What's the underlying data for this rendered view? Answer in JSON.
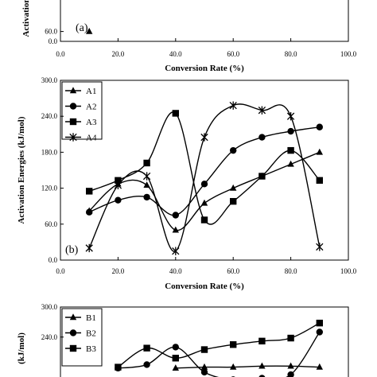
{
  "chart_data": [
    {
      "type": "line",
      "panel_label": "(a)",
      "xlabel": "Conversion Rate (%)",
      "ylabel": "Activation",
      "xlim": [
        0,
        100
      ],
      "ylim": [
        0,
        300
      ],
      "x_ticks": [
        "0.0",
        "20.0",
        "40.0",
        "60.0",
        "80.0",
        "100.0"
      ],
      "y_ticks_visible": [
        "0.0",
        "60.0"
      ],
      "series": [
        {
          "x": [
            10
          ],
          "values": [
            60
          ],
          "marker": "triangle"
        }
      ]
    },
    {
      "type": "line",
      "panel_label": "(b)",
      "xlabel": "Conversion Rate (%)",
      "ylabel": "Activation Energies (kJ/mol)",
      "xlim": [
        0,
        100
      ],
      "ylim": [
        0,
        300
      ],
      "x_ticks": [
        "0.0",
        "20.0",
        "40.0",
        "60.0",
        "80.0",
        "100.0"
      ],
      "y_ticks": [
        "0.0",
        "60.0",
        "120.0",
        "180.0",
        "240.0",
        "300.0"
      ],
      "legend_position": "top-left",
      "series": [
        {
          "name": "A1",
          "marker": "triangle",
          "x": [
            10,
            20,
            30,
            40,
            50,
            60,
            70,
            80,
            90
          ],
          "values": [
            82,
            127,
            125,
            50,
            95,
            120,
            140,
            160,
            180
          ]
        },
        {
          "name": "A2",
          "marker": "circle",
          "x": [
            10,
            20,
            30,
            40,
            50,
            60,
            70,
            80,
            90
          ],
          "values": [
            80,
            100,
            105,
            75,
            127,
            183,
            205,
            215,
            222
          ]
        },
        {
          "name": "A3",
          "marker": "square",
          "x": [
            10,
            20,
            30,
            40,
            50,
            60,
            70,
            80,
            90
          ],
          "values": [
            115,
            133,
            162,
            245,
            67,
            98,
            140,
            183,
            133
          ]
        },
        {
          "name": "A4",
          "marker": "star",
          "x": [
            10,
            20,
            30,
            40,
            50,
            60,
            70,
            80,
            90
          ],
          "values": [
            20,
            125,
            140,
            15,
            205,
            258,
            250,
            240,
            22
          ]
        }
      ]
    },
    {
      "type": "line",
      "panel_label": "",
      "xlabel": "",
      "ylabel": "(kJ/mol)",
      "xlim": [
        0,
        100
      ],
      "ylim": [
        0,
        300
      ],
      "y_ticks_visible": [
        "240.0",
        "300.0"
      ],
      "legend_position": "top-left",
      "series": [
        {
          "name": "B1",
          "marker": "triangle",
          "x": [
            40,
            50,
            60,
            70,
            80,
            90
          ],
          "values": [
            178,
            180,
            180,
            182,
            182,
            180
          ]
        },
        {
          "name": "B2",
          "marker": "circle",
          "x": [
            20,
            30,
            40,
            50,
            60,
            70,
            80,
            90
          ],
          "values": [
            178,
            185,
            220,
            170,
            155,
            158,
            165,
            250
          ]
        },
        {
          "name": "B3",
          "marker": "square",
          "x": [
            20,
            30,
            40,
            50,
            60,
            70,
            80,
            90
          ],
          "values": [
            180,
            218,
            198,
            215,
            225,
            232,
            238,
            268
          ]
        }
      ]
    }
  ]
}
